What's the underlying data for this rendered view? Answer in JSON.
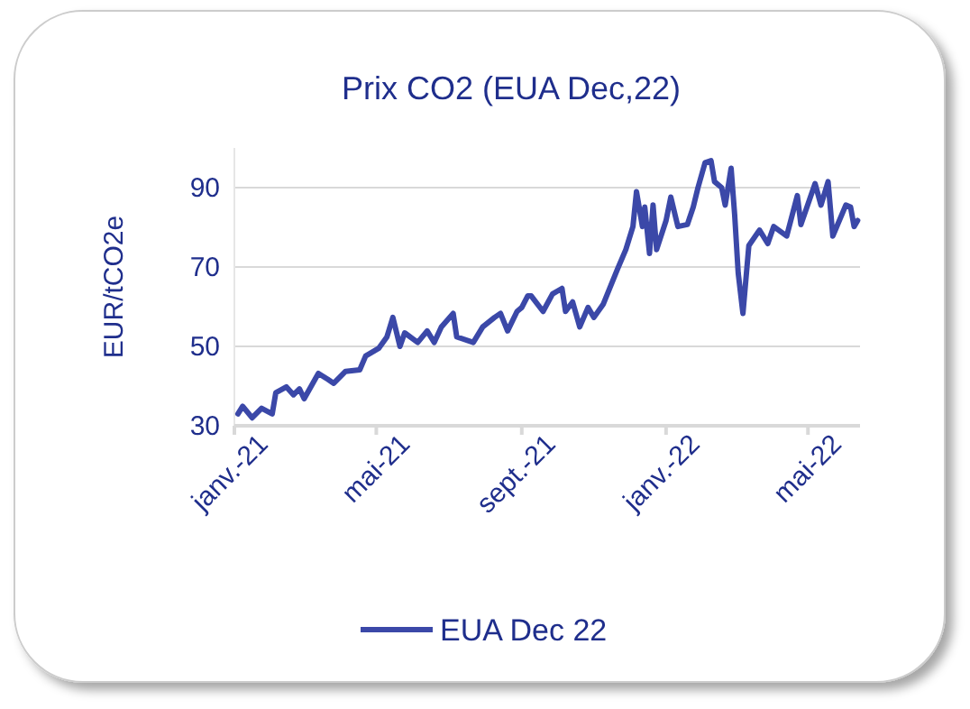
{
  "chart_data": {
    "type": "line",
    "title": "Prix CO2 (EUA Dec,22)",
    "ylabel": "EUR/tCO2e",
    "xlim": [
      "2021-01-01",
      "2022-06-14"
    ],
    "xticks": [
      {
        "value": "2021-01-01",
        "label": "janv.-21"
      },
      {
        "value": "2021-05-01",
        "label": "mai-21"
      },
      {
        "value": "2021-09-01",
        "label": "sept.-21"
      },
      {
        "value": "2022-01-01",
        "label": "janv.-22"
      },
      {
        "value": "2022-05-01",
        "label": "mai-22"
      }
    ],
    "ylim": [
      30,
      100
    ],
    "yticks": [
      30,
      50,
      70,
      90
    ],
    "grid": "y",
    "legend": "bottom",
    "line_style": "solid",
    "marker": "none",
    "series": [
      {
        "name": "EUA Dec 22",
        "color": "#3b48a8",
        "x": [
          "2021-01-04",
          "2021-01-08",
          "2021-01-16",
          "2021-01-24",
          "2021-02-02",
          "2021-02-05",
          "2021-02-14",
          "2021-02-20",
          "2021-02-25",
          "2021-03-01",
          "2021-03-13",
          "2021-03-21",
          "2021-03-26",
          "2021-04-05",
          "2021-04-17",
          "2021-04-22",
          "2021-05-03",
          "2021-05-10",
          "2021-05-15",
          "2021-05-21",
          "2021-05-25",
          "2021-06-05",
          "2021-06-13",
          "2021-06-19",
          "2021-06-25",
          "2021-07-05",
          "2021-07-08",
          "2021-07-22",
          "2021-07-30",
          "2021-08-09",
          "2021-08-14",
          "2021-08-20",
          "2021-08-28",
          "2021-09-01",
          "2021-09-06",
          "2021-09-09",
          "2021-09-19",
          "2021-09-27",
          "2021-10-05",
          "2021-10-08",
          "2021-10-14",
          "2021-10-20",
          "2021-10-27",
          "2021-11-01",
          "2021-11-09",
          "2021-11-21",
          "2021-11-28",
          "2021-12-04",
          "2021-12-07",
          "2021-12-12",
          "2021-12-14",
          "2021-12-18",
          "2021-12-21",
          "2021-12-24",
          "2022-01-01",
          "2022-01-05",
          "2022-01-11",
          "2022-01-19",
          "2022-01-24",
          "2022-01-28",
          "2022-02-03",
          "2022-02-08",
          "2022-02-11",
          "2022-02-17",
          "2022-02-20",
          "2022-02-25",
          "2022-02-28",
          "2022-03-03",
          "2022-03-07",
          "2022-03-12",
          "2022-03-21",
          "2022-03-28",
          "2022-04-02",
          "2022-04-13",
          "2022-04-22",
          "2022-04-25",
          "2022-05-07",
          "2022-05-12",
          "2022-05-18",
          "2022-05-22",
          "2022-06-02",
          "2022-06-06",
          "2022-06-09",
          "2022-06-12"
        ],
        "values": [
          33,
          34.9,
          32,
          34.4,
          33,
          38.3,
          39.8,
          37.8,
          39.3,
          36.8,
          43.2,
          41.7,
          40.7,
          43.7,
          44.1,
          47.6,
          49.5,
          52.4,
          57.3,
          50,
          53.4,
          51,
          53.9,
          51,
          54.9,
          58.3,
          52.4,
          51,
          54.9,
          57.3,
          58.3,
          53.9,
          58.8,
          59.8,
          62.7,
          62.7,
          58.8,
          63.2,
          64.6,
          58.8,
          61.2,
          54.9,
          59.8,
          57.3,
          60.7,
          69.5,
          74.4,
          80.2,
          89,
          80.2,
          85.1,
          73.4,
          85.6,
          74.4,
          81.7,
          87.6,
          80.2,
          80.7,
          85.1,
          90,
          96.3,
          96.8,
          91.5,
          90,
          85.6,
          94.9,
          83.2,
          68.5,
          58.3,
          75.4,
          79.3,
          75.9,
          80.2,
          77.8,
          88,
          80.7,
          91,
          85.6,
          91.5,
          77.8,
          85.6,
          85.1,
          80.2,
          81.7
        ]
      }
    ]
  }
}
